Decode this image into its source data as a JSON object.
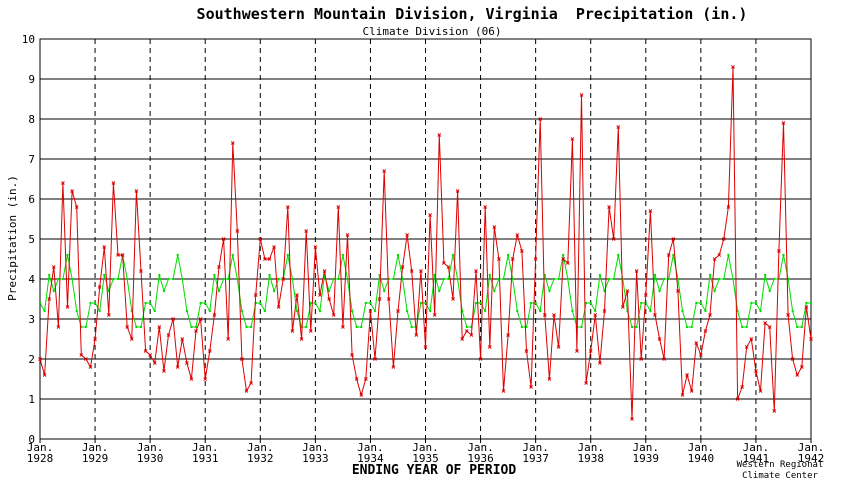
{
  "chart_data": {
    "type": "line",
    "title": "Southwestern Mountain Division, Virginia  Precipitation (in.)",
    "subtitle": "Climate Division (06)",
    "xlabel": "ENDING YEAR OF PERIOD",
    "ylabel": "Precipitation (in.)",
    "credit_line1": "Western Regional",
    "credit_line2": "Climate Center",
    "ylim": [
      0,
      10
    ],
    "yticks": [
      0,
      1,
      2,
      3,
      4,
      5,
      6,
      7,
      8,
      9,
      10
    ],
    "xticks": [
      {
        "top": "Jan.",
        "bottom": "1928",
        "year": 1928
      },
      {
        "top": "Jan.",
        "bottom": "1929",
        "year": 1929
      },
      {
        "top": "Jan.",
        "bottom": "1930",
        "year": 1930
      },
      {
        "top": "Jan.",
        "bottom": "1931",
        "year": 1931
      },
      {
        "top": "Jan.",
        "bottom": "1932",
        "year": 1932
      },
      {
        "top": "Jan.",
        "bottom": "1933",
        "year": 1933
      },
      {
        "top": "Jan.",
        "bottom": "1934",
        "year": 1934
      },
      {
        "top": "Jan.",
        "bottom": "1935",
        "year": 1935
      },
      {
        "top": "Jan.",
        "bottom": "1936",
        "year": 1936
      },
      {
        "top": "Jan.",
        "bottom": "1937",
        "year": 1937
      },
      {
        "top": "Jan.",
        "bottom": "1938",
        "year": 1938
      },
      {
        "top": "Jan.",
        "bottom": "1939",
        "year": 1939
      },
      {
        "top": "Jan.",
        "bottom": "1940",
        "year": 1940
      },
      {
        "top": "Jan.",
        "bottom": "1941",
        "year": 1941
      },
      {
        "top": "Jan.",
        "bottom": "1942",
        "year": 1942
      }
    ],
    "grid": "horizontal solid, vertical dashed at each January",
    "start": "1928-01",
    "series": [
      {
        "color": "#dd0000",
        "marker": "x",
        "values": [
          2.0,
          1.6,
          3.5,
          4.3,
          2.8,
          6.4,
          3.3,
          6.2,
          5.8,
          2.1,
          2.0,
          1.8,
          2.5,
          3.8,
          4.8,
          3.1,
          6.4,
          4.6,
          4.6,
          2.8,
          2.5,
          6.2,
          4.2,
          2.2,
          2.1,
          1.9,
          2.8,
          1.7,
          2.6,
          3.0,
          1.8,
          2.5,
          1.9,
          1.5,
          2.7,
          3.0,
          1.5,
          2.2,
          3.1,
          4.3,
          5.0,
          2.5,
          7.4,
          5.2,
          2.0,
          1.2,
          1.4,
          3.6,
          5.0,
          4.5,
          4.5,
          4.8,
          3.3,
          4.0,
          5.8,
          2.7,
          3.6,
          2.5,
          5.2,
          2.7,
          4.8,
          3.6,
          4.2,
          3.5,
          3.1,
          5.8,
          2.8,
          5.1,
          2.1,
          1.5,
          1.1,
          1.5,
          3.2,
          2.0,
          3.5,
          6.7,
          3.5,
          1.8,
          3.2,
          4.3,
          5.1,
          4.2,
          2.6,
          4.2,
          2.3,
          5.6,
          3.1,
          7.6,
          4.4,
          4.3,
          3.5,
          6.2,
          2.5,
          2.7,
          2.6,
          4.2,
          2.0,
          5.8,
          2.3,
          5.3,
          4.5,
          1.2,
          2.6,
          4.5,
          5.1,
          4.7,
          2.2,
          1.3,
          4.5,
          8.0,
          3.1,
          1.5,
          3.1,
          2.3,
          4.5,
          4.4,
          7.5,
          2.2,
          8.6,
          1.4,
          2.2,
          3.1,
          1.9,
          3.2,
          5.8,
          5.0,
          7.8,
          3.3,
          3.7,
          0.5,
          4.2,
          2.0,
          3.6,
          5.7,
          3.1,
          2.5,
          2.0,
          4.6,
          5.0,
          3.7,
          1.1,
          1.6,
          1.2,
          2.4,
          2.1,
          2.7,
          3.1,
          4.5,
          4.6,
          5.0,
          5.8,
          9.3,
          1.0,
          1.3,
          2.3,
          2.5,
          1.7,
          1.2,
          2.9,
          2.8,
          0.7,
          4.7,
          7.9,
          3.1,
          2.0,
          1.6,
          1.8,
          3.3,
          2.5
        ]
      },
      {
        "color": "#00dd00",
        "marker": "dot",
        "values": [
          3.4,
          3.2,
          4.1,
          3.7,
          4.0,
          4.0,
          4.6,
          4.0,
          3.2,
          2.8,
          2.8,
          3.4,
          3.4,
          3.2,
          4.1,
          3.7,
          4.0,
          4.0,
          4.6,
          4.0,
          3.2,
          2.8,
          2.8,
          3.4,
          3.4,
          3.2,
          4.1,
          3.7,
          4.0,
          4.0,
          4.6,
          4.0,
          3.2,
          2.8,
          2.8,
          3.4,
          3.4,
          3.2,
          4.1,
          3.7,
          4.0,
          4.0,
          4.6,
          4.0,
          3.2,
          2.8,
          2.8,
          3.4,
          3.4,
          3.2,
          4.1,
          3.7,
          4.0,
          4.0,
          4.6,
          4.0,
          3.2,
          2.8,
          2.8,
          3.4,
          3.4,
          3.2,
          4.1,
          3.7,
          4.0,
          4.0,
          4.6,
          4.0,
          3.2,
          2.8,
          2.8,
          3.4,
          3.4,
          3.2,
          4.1,
          3.7,
          4.0,
          4.0,
          4.6,
          4.0,
          3.2,
          2.8,
          2.8,
          3.4,
          3.4,
          3.2,
          4.1,
          3.7,
          4.0,
          4.0,
          4.6,
          4.0,
          3.2,
          2.8,
          2.8,
          3.4,
          3.4,
          3.2,
          4.1,
          3.7,
          4.0,
          4.0,
          4.6,
          4.0,
          3.2,
          2.8,
          2.8,
          3.4,
          3.4,
          3.2,
          4.1,
          3.7,
          4.0,
          4.0,
          4.6,
          4.0,
          3.2,
          2.8,
          2.8,
          3.4,
          3.4,
          3.2,
          4.1,
          3.7,
          4.0,
          4.0,
          4.6,
          4.0,
          3.2,
          2.8,
          2.8,
          3.4,
          3.4,
          3.2,
          4.1,
          3.7,
          4.0,
          4.0,
          4.6,
          4.0,
          3.2,
          2.8,
          2.8,
          3.4,
          3.4,
          3.2,
          4.1,
          3.7,
          4.0,
          4.0,
          4.6,
          4.0,
          3.2,
          2.8,
          2.8,
          3.4,
          3.4,
          3.2,
          4.1,
          3.7,
          4.0,
          4.0,
          4.6,
          4.0,
          3.2,
          2.8,
          2.8,
          3.4,
          3.4
        ]
      }
    ]
  }
}
